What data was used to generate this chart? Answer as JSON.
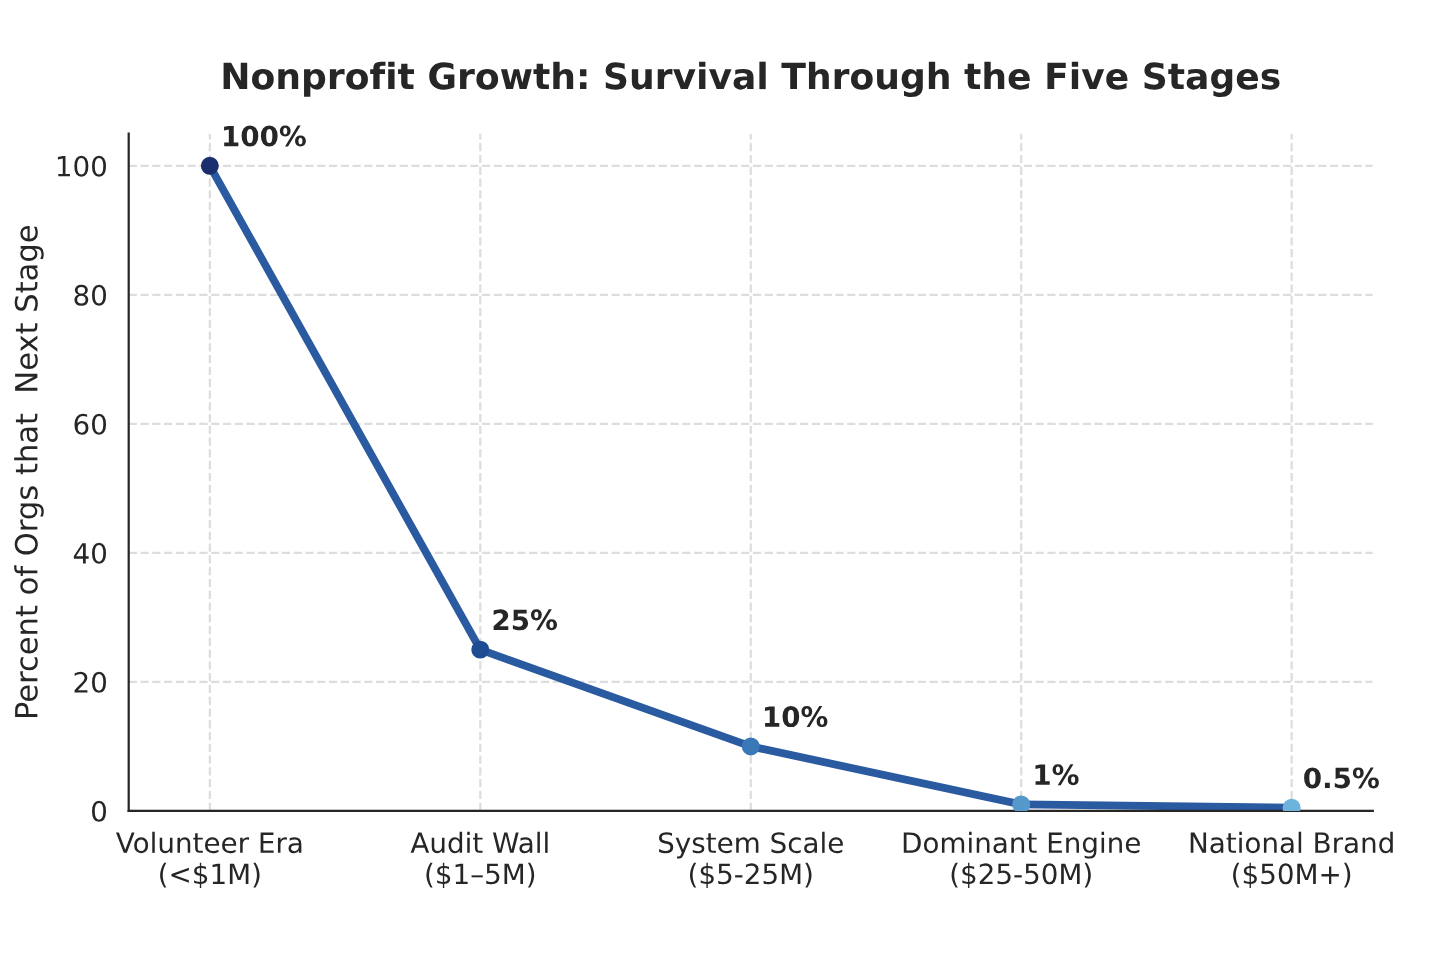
{
  "chart_data": {
    "type": "line",
    "title": "Nonprofit Growth: Survival Through the Five Stages",
    "ylabel": "Percent of Orgs that  Next Stage",
    "categories": [
      "Volunteer Era\n(<$1M)",
      "Audit Wall\n($1–5M)",
      "System Scale\n($5-25M)",
      "Dominant Engine\n($25-50M)",
      "National Brand\n($50M+)"
    ],
    "series": [
      {
        "color": "#2a5aa0",
        "values": [
          100,
          25,
          10,
          1,
          0.5
        ],
        "colors": [
          "#1b2f6e",
          "#1f4d94",
          "#3a78b8",
          "#5598cc",
          "#6db3de"
        ],
        "value_labels": [
          "100%",
          "25%",
          "10%",
          "1%",
          "0.5%"
        ]
      }
    ],
    "ylim": [
      0,
      105
    ],
    "yticks": [
      0,
      20,
      40,
      60,
      80,
      100
    ],
    "grid": true,
    "marker": "circle",
    "line_style": "solid"
  }
}
